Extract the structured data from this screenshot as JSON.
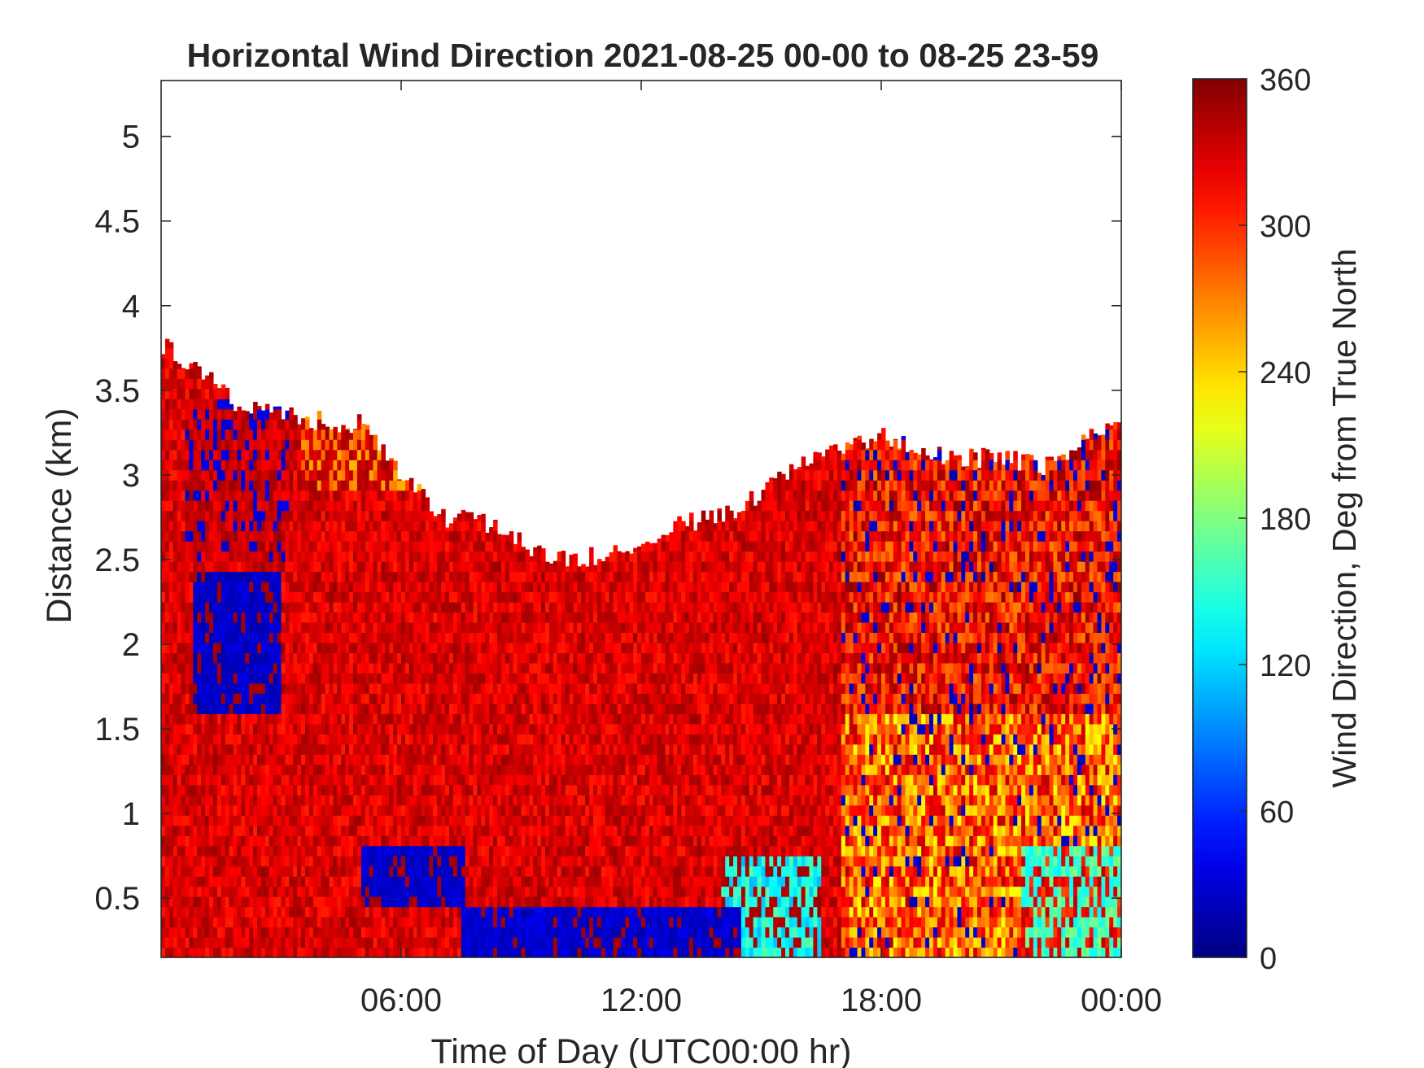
{
  "chart_data": {
    "type": "heatmap",
    "title": "Horizontal Wind Direction 2021-08-25 00-00 to 08-25 23-59",
    "xlabel": "Time of Day (UTC00:00 hr)",
    "ylabel": "Distance (km)",
    "xlim": [
      0,
      24
    ],
    "ylim": [
      0.15,
      5.33
    ],
    "x_ticks": [
      {
        "value": 6,
        "label": "06:00"
      },
      {
        "value": 12,
        "label": "12:00"
      },
      {
        "value": 18,
        "label": "18:00"
      },
      {
        "value": 24,
        "label": "00:00"
      }
    ],
    "y_ticks": [
      {
        "value": 0.5,
        "label": "0.5"
      },
      {
        "value": 1,
        "label": "1"
      },
      {
        "value": 1.5,
        "label": "1.5"
      },
      {
        "value": 2,
        "label": "2"
      },
      {
        "value": 2.5,
        "label": "2.5"
      },
      {
        "value": 3,
        "label": "3"
      },
      {
        "value": 3.5,
        "label": "3.5"
      },
      {
        "value": 4,
        "label": "4"
      },
      {
        "value": 4.5,
        "label": "4.5"
      },
      {
        "value": 5,
        "label": "5"
      }
    ],
    "colorbar": {
      "label": "Wind Direction, Deg from True North",
      "range": [
        0,
        360
      ],
      "colormap": "jet",
      "ticks": [
        {
          "value": 0,
          "label": "0"
        },
        {
          "value": 60,
          "label": "60"
        },
        {
          "value": 120,
          "label": "120"
        },
        {
          "value": 180,
          "label": "180"
        },
        {
          "value": 240,
          "label": "240"
        },
        {
          "value": 300,
          "label": "300"
        },
        {
          "value": 360,
          "label": "360"
        }
      ]
    },
    "grid": false,
    "data_top_km": {
      "x_hours": [
        0,
        1,
        2,
        3,
        4,
        5,
        6,
        7,
        8,
        9,
        10,
        11,
        12,
        13,
        14,
        15,
        16,
        17,
        18,
        19,
        20,
        21,
        22,
        23,
        24
      ],
      "top_km": [
        3.78,
        3.6,
        3.4,
        3.35,
        3.32,
        3.3,
        3.0,
        2.75,
        2.72,
        2.6,
        2.5,
        2.52,
        2.6,
        2.72,
        2.75,
        2.9,
        3.05,
        3.15,
        3.25,
        3.15,
        3.1,
        3.1,
        3.05,
        3.2,
        3.3
      ]
    },
    "regions": [
      {
        "area": "low levels, 00:00-18:00",
        "direction_deg": [
          310,
          345
        ]
      },
      {
        "area": "near-surface blue band, 07:30-14:30 (0.15-0.5 km)",
        "direction_deg": [
          10,
          40
        ]
      },
      {
        "area": "patch near 2 km, 00:50-03:00",
        "direction_deg": [
          15,
          35
        ]
      },
      {
        "area": "near-surface cyan/green, 14:30-16:30 and 21:30-24:00",
        "direction_deg": [
          120,
          200
        ]
      },
      {
        "area": "mixed column after 17:00",
        "direction_deg": [
          220,
          330
        ]
      }
    ]
  }
}
